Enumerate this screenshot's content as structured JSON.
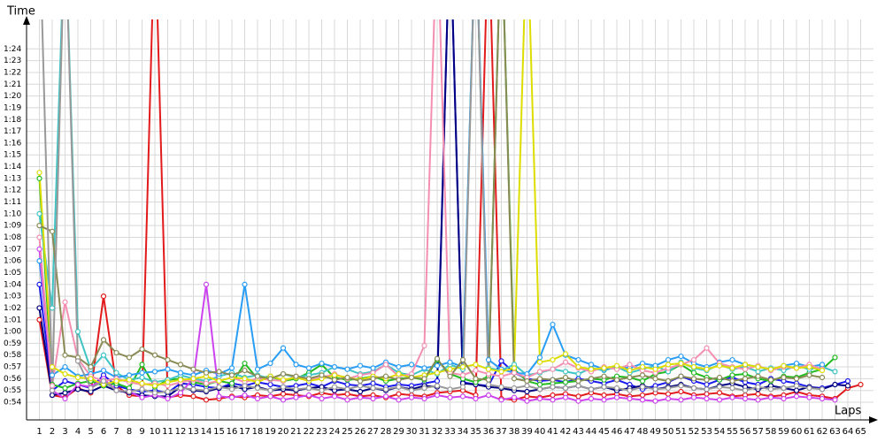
{
  "chart_data": {
    "type": "line",
    "y_label": "Time",
    "x_label": "Laps",
    "grid": true,
    "marker": "circle",
    "xlim": [
      0,
      66
    ],
    "ylim": [
      52.5,
      86.5
    ],
    "x": [
      1,
      2,
      3,
      4,
      5,
      6,
      7,
      8,
      9,
      10,
      11,
      12,
      13,
      14,
      15,
      16,
      17,
      18,
      19,
      20,
      21,
      22,
      23,
      24,
      25,
      26,
      27,
      28,
      29,
      30,
      31,
      32,
      33,
      34,
      35,
      36,
      37,
      38,
      39,
      40,
      41,
      42,
      43,
      44,
      45,
      46,
      47,
      48,
      49,
      50,
      51,
      52,
      53,
      54,
      55,
      56,
      57,
      58,
      59,
      60,
      61,
      62,
      63,
      64,
      65
    ],
    "xticks": [
      1,
      2,
      3,
      4,
      5,
      6,
      7,
      8,
      9,
      10,
      11,
      12,
      13,
      14,
      15,
      16,
      17,
      18,
      19,
      20,
      21,
      22,
      23,
      24,
      25,
      26,
      27,
      28,
      29,
      30,
      31,
      32,
      33,
      34,
      35,
      36,
      37,
      38,
      39,
      40,
      41,
      42,
      43,
      44,
      45,
      46,
      47,
      48,
      49,
      50,
      51,
      52,
      53,
      54,
      55,
      56,
      57,
      58,
      59,
      60,
      61,
      62,
      63,
      64,
      65
    ],
    "yticks": [
      {
        "value": 54,
        "label": "0:54"
      },
      {
        "value": 55,
        "label": "0:55"
      },
      {
        "value": 56,
        "label": "0:56"
      },
      {
        "value": 57,
        "label": "0:57"
      },
      {
        "value": 58,
        "label": "0:58"
      },
      {
        "value": 59,
        "label": "0:59"
      },
      {
        "value": 60,
        "label": "1:00"
      },
      {
        "value": 61,
        "label": "1:01"
      },
      {
        "value": 62,
        "label": "1:02"
      },
      {
        "value": 63,
        "label": "1:03"
      },
      {
        "value": 64,
        "label": "1:04"
      },
      {
        "value": 65,
        "label": "1:05"
      },
      {
        "value": 66,
        "label": "1:06"
      },
      {
        "value": 67,
        "label": "1:07"
      },
      {
        "value": 68,
        "label": "1:08"
      },
      {
        "value": 69,
        "label": "1:09"
      },
      {
        "value": 70,
        "label": "1:10"
      },
      {
        "value": 71,
        "label": "1:11"
      },
      {
        "value": 72,
        "label": "1:12"
      },
      {
        "value": 73,
        "label": "1:13"
      },
      {
        "value": 74,
        "label": "1:14"
      },
      {
        "value": 75,
        "label": "1:15"
      },
      {
        "value": 76,
        "label": "1:16"
      },
      {
        "value": 77,
        "label": "1:17"
      },
      {
        "value": 78,
        "label": "1:18"
      },
      {
        "value": 79,
        "label": "1:19"
      },
      {
        "value": 80,
        "label": "1:20"
      },
      {
        "value": 81,
        "label": "1:21"
      },
      {
        "value": 82,
        "label": "1:22"
      },
      {
        "value": 83,
        "label": "1:23"
      },
      {
        "value": 84,
        "label": "1:24"
      }
    ],
    "series": [
      {
        "color": "#e31a1c",
        "values": [
          61,
          54.6,
          54.4,
          55.2,
          54.8,
          63,
          55.4,
          54.6,
          54.5,
          95,
          54.4,
          54.6,
          54.5,
          54.2,
          54.3,
          54.5,
          54.4,
          54.6,
          54.5,
          54.7,
          54.6,
          54.5,
          54.8,
          54.6,
          54.7,
          54.5,
          54.6,
          54.4,
          54.7,
          54.6,
          54.5,
          54.8,
          54.9,
          55,
          54.6,
          95,
          54.3,
          54.2,
          54.5,
          54.4,
          54.6,
          54.7,
          54.5,
          54.8,
          54.6,
          54.7,
          54.5,
          54.6,
          54.8,
          54.7,
          54.9,
          54.6,
          54.7,
          54.8,
          54.5,
          54.6,
          54.7,
          54.5,
          54.6,
          54.9,
          54.6,
          54.5,
          54.3,
          55.2,
          55.5
        ]
      },
      {
        "color": "#1a1aee",
        "values": [
          64,
          55,
          55.8,
          55.5,
          55.2,
          56.3,
          55.4,
          55.1,
          54.9,
          55,
          54.8,
          55.6,
          55.5,
          55.3,
          55.2,
          55.6,
          55.4,
          55.7,
          55.5,
          55.3,
          55.4,
          55.6,
          55.3,
          55.8,
          55.5,
          55.4,
          55.6,
          55.3,
          55.5,
          55.4,
          55.6,
          55.8,
          95,
          55.7,
          55.5,
          55.4,
          57.5,
          56.5,
          56,
          55.8,
          55.9,
          55.7,
          56,
          55.8,
          55.6,
          55.9,
          55.5,
          55.1,
          55.4,
          55.7,
          56.2,
          55.8,
          55.5,
          55.9,
          56.1,
          55.7,
          55.5,
          56,
          55.8,
          55.6,
          55.3,
          55.2,
          55.5,
          55.8,
          null
        ]
      },
      {
        "color": "#000080",
        "values": [
          62,
          54.6,
          54.8,
          55.1,
          54.9,
          55.4,
          55,
          54.8,
          54.6,
          54.5,
          54.5,
          55.3,
          55,
          54.9,
          55.2,
          55.4,
          55.1,
          55.3,
          55,
          55.1,
          55,
          55.2,
          55.3,
          55,
          55.1,
          54.9,
          55.2,
          55,
          55.3,
          55.1,
          55.4,
          55.3,
          95,
          55.6,
          55.5,
          55.3,
          55.2,
          55,
          54.9,
          55.1,
          55.3,
          55.2,
          55.4,
          55.1,
          55.3,
          55,
          55.2,
          55.4,
          55.1,
          55.3,
          55.5,
          55.2,
          55.1,
          55.4,
          55.6,
          55.3,
          55.1,
          55.4,
          55.2,
          55,
          55.3,
          55.1,
          55.5,
          55.4,
          null
        ]
      },
      {
        "color": "#22bb22",
        "values": [
          73,
          55.5,
          55.2,
          55.6,
          55.8,
          55.4,
          55.6,
          55.2,
          57.2,
          55.3,
          55.9,
          56,
          55.7,
          55.5,
          55.8,
          55.6,
          57.3,
          56,
          56.2,
          55.8,
          56,
          56.5,
          57.2,
          56.1,
          55.9,
          56,
          56.2,
          55.8,
          56,
          56.1,
          55.9,
          57.6,
          56.4,
          56,
          55.7,
          56.2,
          95,
          56.8,
          55.8,
          55.5,
          55.6,
          55.7,
          55.8,
          56,
          55.9,
          56.2,
          56.1,
          55.8,
          56.4,
          56.6,
          57.2,
          56.5,
          56.1,
          55.9,
          56.3,
          56.4,
          56,
          55.8,
          56.2,
          56.1,
          56.5,
          56.8,
          57.8,
          null,
          null
        ]
      },
      {
        "color": "#40c4c4",
        "values": [
          70,
          62,
          95,
          60,
          56.8,
          58,
          56.5,
          55.9,
          56.1,
          55.7,
          55.9,
          56.3,
          56,
          55.8,
          56.2,
          56.5,
          56.1,
          56.3,
          56,
          56.4,
          56.1,
          56.3,
          56.5,
          57,
          56.8,
          56.4,
          56.6,
          57.2,
          56.5,
          56.3,
          56.8,
          56.4,
          57.2,
          56.8,
          95,
          56.9,
          56.7,
          57.2,
          56.3,
          56.5,
          56.8,
          56.6,
          56.4,
          56.9,
          56.7,
          57,
          56.5,
          56.8,
          57.1,
          56.6,
          57.4,
          56.9,
          56.7,
          57.2,
          56.8,
          57,
          56.6,
          56.9,
          56.7,
          57.1,
          56.8,
          57,
          56.6,
          null,
          null
        ]
      },
      {
        "color": "#2a9df4",
        "values": [
          66,
          56.3,
          57,
          56.2,
          56.4,
          56.7,
          56.1,
          56.3,
          56.5,
          56.6,
          56.8,
          56.5,
          56.3,
          56.7,
          56.4,
          56.9,
          64,
          56.8,
          57.3,
          58.6,
          57.2,
          56.9,
          57.3,
          57,
          56.8,
          57.1,
          56.9,
          57.4,
          57,
          57.2,
          56.9,
          57.1,
          57.4,
          57,
          95,
          57.6,
          56.8,
          56.5,
          56.4,
          57.8,
          60.6,
          58,
          57.6,
          57.2,
          56.8,
          57,
          56.9,
          57.3,
          57.1,
          57.6,
          57.9,
          57.3,
          57,
          57.4,
          57.6,
          57.2,
          57,
          56.8,
          57.1,
          57.3,
          57,
          57.2,
          null,
          null,
          null
        ]
      },
      {
        "color": "#cc44ee",
        "values": [
          67,
          55,
          54.3,
          55.5,
          55.3,
          56,
          55,
          54.9,
          54.4,
          54.6,
          54.3,
          54.8,
          56,
          64,
          54.5,
          54.4,
          54.6,
          54.3,
          54.5,
          54.2,
          54.4,
          54.6,
          54.3,
          54.5,
          54.2,
          54.4,
          54.3,
          54.5,
          54.2,
          54.4,
          54.3,
          54.6,
          54.4,
          54.5,
          54.3,
          54.6,
          54.2,
          54.4,
          54.1,
          54.3,
          54.2,
          54.4,
          54.1,
          54.3,
          54.2,
          54.4,
          54.3,
          54.2,
          54.1,
          54.3,
          54.2,
          54.4,
          54.3,
          54.2,
          54.4,
          54.3,
          54.2,
          54.4,
          54.3,
          54.5,
          54.4,
          54.3,
          54.2,
          null,
          null
        ]
      },
      {
        "color": "#f48fb1",
        "values": [
          68,
          55.4,
          62.5,
          57.7,
          56.2,
          55.8,
          56,
          55.7,
          55.5,
          55.6,
          55.4,
          55.7,
          55.9,
          55.6,
          55.8,
          56.1,
          55.7,
          56,
          55.9,
          55.8,
          56.2,
          55.9,
          56.1,
          56.4,
          56,
          56.3,
          56.5,
          57.2,
          56.2,
          56.4,
          58.8,
          95,
          56.5,
          56.3,
          56.7,
          56.4,
          56.2,
          56.5,
          56.1,
          56.6,
          56.8,
          57.4,
          56.9,
          56.6,
          57,
          56.8,
          57.2,
          56.7,
          56.5,
          56.9,
          57.2,
          57.6,
          58.6,
          57.3,
          57,
          56.8,
          57.1,
          56.7,
          57,
          56.9,
          57.2,
          56.8,
          null,
          null,
          null
        ]
      },
      {
        "color": "#dddd00",
        "values": [
          73.5,
          57,
          56.4,
          56.1,
          56,
          55.5,
          55.8,
          55.9,
          55.6,
          55.4,
          55.7,
          55.9,
          56,
          56.2,
          55.8,
          56.1,
          56,
          55.7,
          56.2,
          55.9,
          56.1,
          55.8,
          56,
          56.3,
          56.1,
          55.9,
          56.2,
          56,
          56.4,
          56.1,
          56.3,
          56.5,
          56.8,
          57,
          57.2,
          56.8,
          56.6,
          56.9,
          95,
          57.4,
          57.6,
          58.1,
          57,
          56.8,
          56.9,
          57.1,
          56.7,
          57,
          56.8,
          57.2,
          57.3,
          57,
          56.8,
          57.1,
          56.9,
          57.2,
          57,
          56.8,
          57.1,
          56.9,
          57,
          56.7,
          null,
          null,
          null
        ]
      },
      {
        "color": "#8a8a55",
        "values": [
          69,
          68.5,
          58,
          57.8,
          57,
          59.3,
          58.2,
          57.8,
          58.5,
          58,
          57.6,
          57.2,
          56.8,
          56.5,
          56.6,
          56.3,
          56.7,
          56.2,
          56,
          56.4,
          56.2,
          56,
          56.3,
          55.9,
          56.1,
          55.8,
          56,
          56.2,
          55.9,
          56.1,
          56,
          57.7,
          56.2,
          57.6,
          56,
          55.9,
          95,
          56,
          55.8,
          56,
          55.9,
          56.1,
          55.8,
          56,
          56.2,
          55.9,
          56.1,
          56.3,
          56,
          55.8,
          56.2,
          56,
          55.9,
          56.1,
          55.8,
          56,
          56.2,
          55.9,
          56.1,
          56,
          56.3,
          56.1,
          null,
          null,
          null
        ]
      },
      {
        "color": "#999999",
        "values": [
          95,
          55,
          95,
          57.5,
          55.2,
          55.8,
          55,
          54.9,
          55.1,
          54.8,
          54.9,
          55.2,
          55.1,
          55,
          55.3,
          55.1,
          55.4,
          55.2,
          55,
          55.3,
          55.1,
          55.2,
          55,
          55.3,
          55.1,
          55.4,
          55.2,
          55.1,
          55.3,
          55,
          55.2,
          55.4,
          55.1,
          55.3,
          95,
          55.5,
          55.3,
          55.2,
          55.4,
          55.1,
          55.3,
          55.2,
          55.4,
          55.1,
          55.3,
          55.2,
          55,
          55.3,
          55.1,
          55.2,
          55.4,
          55.2,
          55.1,
          55.3,
          55.2,
          55,
          55.3,
          55.1,
          55.2,
          55.4,
          55.2,
          55.1,
          null,
          null,
          null
        ]
      }
    ]
  }
}
